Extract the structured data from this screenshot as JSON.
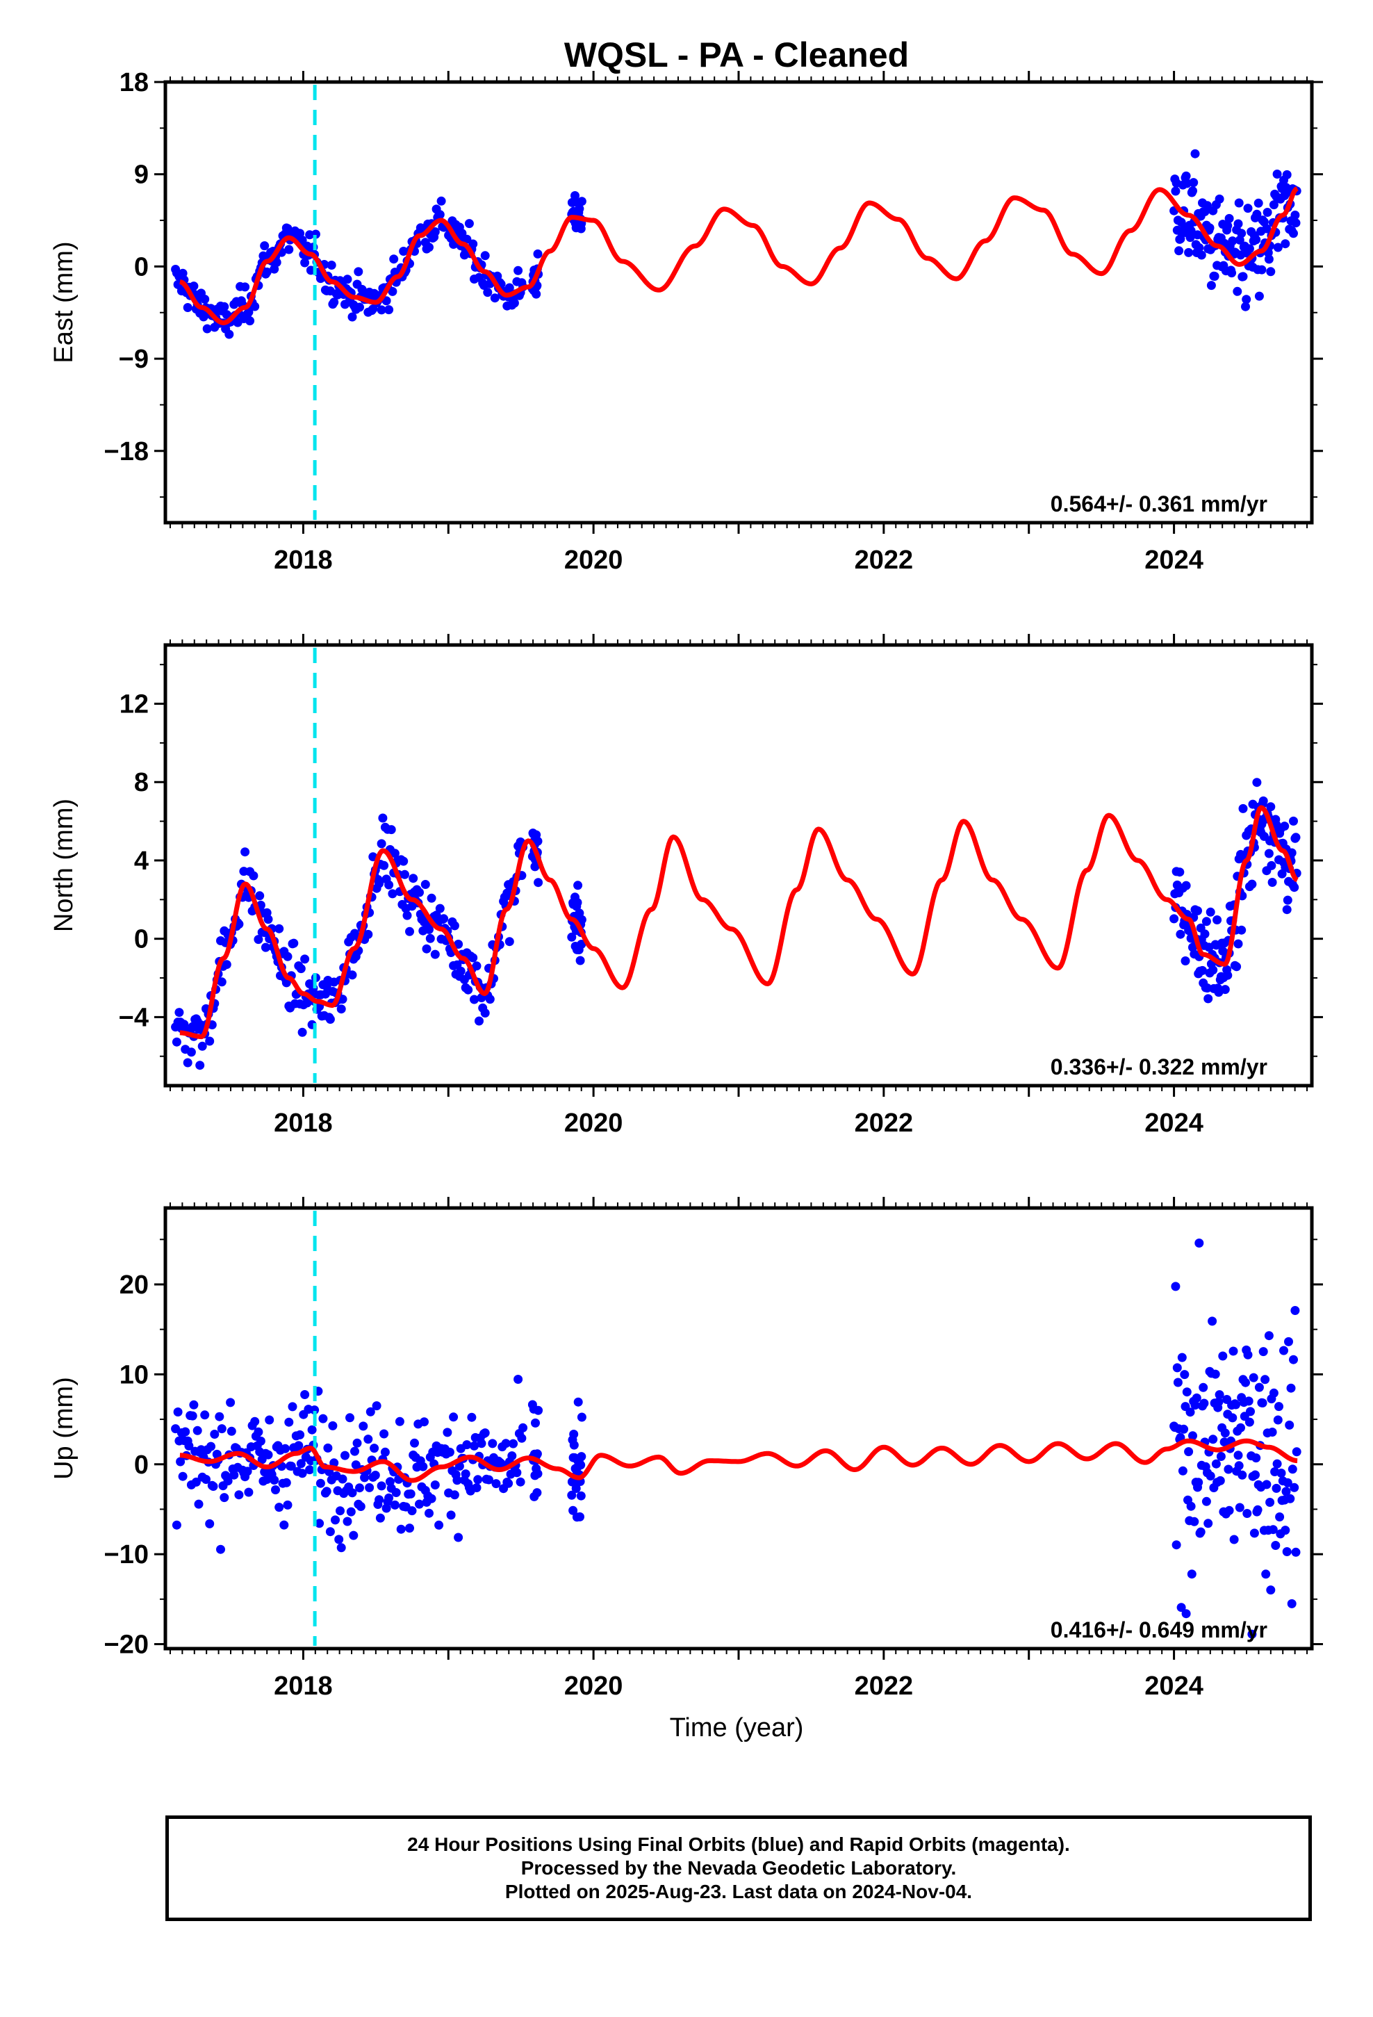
{
  "title": "WQSL  - PA - Cleaned",
  "xlabel": "Time (year)",
  "footer": {
    "line1": "24 Hour Positions Using Final Orbits (blue) and Rapid Orbits (magenta).",
    "line2": "Processed by the Nevada Geodetic Laboratory.",
    "line3": "Plotted on 2025-Aug-23. Last data on 2024-Nov-04."
  },
  "colors": {
    "data": "#0000ff",
    "model": "#ff0000",
    "event": "#00e5ee",
    "frame": "#000000"
  },
  "chart_data": [
    {
      "type": "scatter",
      "panel": "east",
      "ylabel": "East (mm)",
      "ylim": [
        -25,
        18
      ],
      "yticks": [
        18,
        9,
        0,
        -9,
        -18
      ],
      "xlim": [
        2017.05,
        2024.95
      ],
      "xticks": [
        2018,
        2020,
        2022,
        2024
      ],
      "event_line_x": 2018.08,
      "rate_label": "0.564+/- 0.361 mm/yr",
      "model": {
        "x": [
          2017.15,
          2017.3,
          2017.45,
          2017.6,
          2017.75,
          2017.9,
          2018.05,
          2018.2,
          2018.35,
          2018.5,
          2018.65,
          2018.8,
          2018.95,
          2019.1,
          2019.25,
          2019.4,
          2019.55,
          2019.7,
          2019.85,
          2020.0,
          2020.2,
          2020.45,
          2020.7,
          2020.9,
          2021.1,
          2021.3,
          2021.5,
          2021.7,
          2021.9,
          2022.1,
          2022.3,
          2022.5,
          2022.7,
          2022.9,
          2023.1,
          2023.3,
          2023.5,
          2023.7,
          2023.9,
          2024.1,
          2024.3,
          2024.45,
          2024.6,
          2024.75,
          2024.85
        ],
        "y": [
          -1.5,
          -4.0,
          -5.5,
          -4.0,
          0.5,
          2.8,
          1.2,
          -1.5,
          -3.0,
          -3.5,
          -1.0,
          3.0,
          4.5,
          2.2,
          -0.5,
          -2.8,
          -2.0,
          1.5,
          4.8,
          4.5,
          0.5,
          -2.3,
          2.0,
          5.6,
          4.0,
          0.0,
          -1.7,
          1.8,
          6.2,
          4.6,
          0.8,
          -1.2,
          2.5,
          6.7,
          5.5,
          1.2,
          -0.7,
          3.5,
          7.5,
          5.0,
          2.0,
          0.2,
          1.5,
          5.0,
          7.6
        ]
      },
      "points_summary": "Daily position residuals in mm, 2017.1–2019.5 and 2019.9 and 2024.0–2024.85"
    },
    {
      "type": "scatter",
      "panel": "north",
      "ylabel": "North (mm)",
      "ylim": [
        -7.5,
        15
      ],
      "yticks": [
        12,
        8,
        4,
        0,
        -4
      ],
      "xlim": [
        2017.05,
        2024.95
      ],
      "xticks": [
        2018,
        2020,
        2022,
        2024
      ],
      "event_line_x": 2018.08,
      "rate_label": "0.336+/- 0.322 mm/yr",
      "model": {
        "x": [
          2017.15,
          2017.3,
          2017.45,
          2017.6,
          2017.75,
          2017.9,
          2018.0,
          2018.1,
          2018.2,
          2018.35,
          2018.55,
          2018.75,
          2018.95,
          2019.1,
          2019.25,
          2019.4,
          2019.55,
          2019.7,
          2019.85,
          2020.0,
          2020.2,
          2020.4,
          2020.55,
          2020.75,
          2020.95,
          2021.2,
          2021.4,
          2021.55,
          2021.75,
          2021.95,
          2022.2,
          2022.4,
          2022.55,
          2022.75,
          2022.95,
          2023.2,
          2023.4,
          2023.55,
          2023.75,
          2023.95,
          2024.1,
          2024.2,
          2024.35,
          2024.5,
          2024.6,
          2024.75,
          2024.85
        ],
        "y": [
          -4.8,
          -5.0,
          -1.0,
          2.8,
          0.5,
          -2.0,
          -2.8,
          -3.2,
          -3.4,
          -0.5,
          4.5,
          2.0,
          0.5,
          -1.0,
          -2.8,
          1.5,
          5.0,
          3.0,
          1.0,
          -0.5,
          -2.5,
          1.5,
          5.2,
          2.0,
          0.5,
          -2.3,
          2.5,
          5.6,
          3.0,
          1.0,
          -1.8,
          3.0,
          6.0,
          3.0,
          1.0,
          -1.5,
          3.5,
          6.3,
          4.0,
          2.0,
          1.0,
          -0.8,
          -1.3,
          4.0,
          6.7,
          4.5,
          3.0
        ]
      },
      "points_summary": "Daily position residuals in mm"
    },
    {
      "type": "scatter",
      "panel": "up",
      "ylabel": "Up (mm)",
      "ylim": [
        -20.5,
        28.5
      ],
      "yticks": [
        20,
        10,
        0,
        -10,
        -20
      ],
      "xlim": [
        2017.05,
        2024.95
      ],
      "xticks": [
        2018,
        2020,
        2022,
        2024
      ],
      "event_line_x": 2018.08,
      "rate_label": "0.416+/- 0.649 mm/yr",
      "model": {
        "x": [
          2017.15,
          2017.35,
          2017.55,
          2017.75,
          2017.95,
          2018.05,
          2018.15,
          2018.35,
          2018.55,
          2018.75,
          2018.95,
          2019.15,
          2019.35,
          2019.55,
          2019.75,
          2019.9,
          2020.05,
          2020.25,
          2020.45,
          2020.6,
          2020.8,
          2021.0,
          2021.2,
          2021.4,
          2021.6,
          2021.8,
          2022.0,
          2022.2,
          2022.4,
          2022.6,
          2022.8,
          2023.0,
          2023.2,
          2023.4,
          2023.6,
          2023.8,
          2023.95,
          2024.1,
          2024.3,
          2024.5,
          2024.65,
          2024.85
        ],
        "y": [
          1.0,
          0.3,
          1.2,
          -0.3,
          1.2,
          1.8,
          -0.3,
          -0.8,
          0.3,
          -1.8,
          -0.3,
          0.8,
          -0.6,
          0.7,
          -0.5,
          -1.5,
          1.0,
          -0.2,
          0.8,
          -1.0,
          0.4,
          0.3,
          1.2,
          -0.2,
          1.5,
          -0.6,
          1.9,
          -0.1,
          1.8,
          0.0,
          2.1,
          0.3,
          2.3,
          0.6,
          2.3,
          0.2,
          1.7,
          2.6,
          1.6,
          2.6,
          1.9,
          0.4
        ]
      },
      "points_summary": "Daily position residuals in mm"
    }
  ]
}
